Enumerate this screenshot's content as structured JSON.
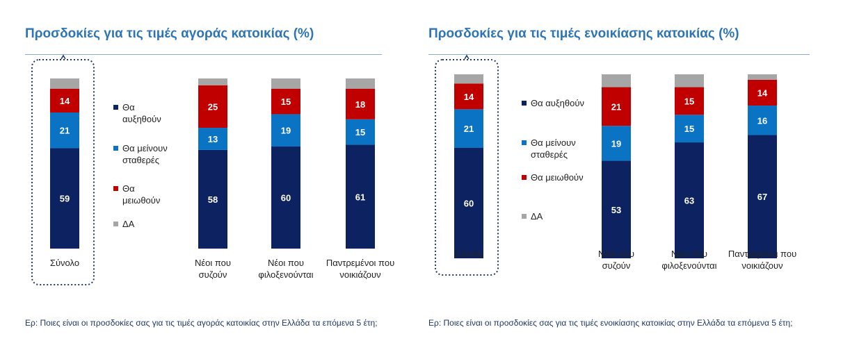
{
  "colors": {
    "increase": "#0D2260",
    "stable": "#0A73C4",
    "decrease": "#C00000",
    "dk": "#A6A6A6",
    "title": "#2E75B6",
    "text": "#1F3864"
  },
  "chart_data": [
    {
      "type": "bar",
      "stacked": true,
      "title": "Προσδοκίες για τις τιμές αγοράς κατοικίας (%)",
      "categories": [
        "Σύνολο",
        "Νέοι που συζούν",
        "Νέοι που φιλοξενούνται",
        "Παντρεμένοι που νοικιάζουν"
      ],
      "series": [
        {
          "name": "Θα αυξηθούν",
          "values": [
            59,
            58,
            60,
            61
          ]
        },
        {
          "name": "Θα μείνουν σταθερές",
          "values": [
            21,
            13,
            19,
            15
          ]
        },
        {
          "name": "Θα μειωθούν",
          "values": [
            14,
            25,
            15,
            18
          ]
        },
        {
          "name": "ΔΑ",
          "values": [
            6,
            4,
            6,
            6
          ]
        }
      ],
      "legend_position": "between first and second bar",
      "footnote": "Ερ: Ποιες είναι οι προσδοκίες σας για τις τιμές αγοράς κατοικίας στην Ελλάδα τα επόμενα 5 έτη;"
    },
    {
      "type": "bar",
      "stacked": true,
      "title": "Προσδοκίες για τις τιμές ενοικίασης κατοικίας (%)",
      "categories": [
        "Σύνολο",
        "Νέοι που συζούν",
        "Νέοι που φιλοξενούνται",
        "Παντρεμένοι που νοικιάζουν"
      ],
      "series": [
        {
          "name": "Θα αυξηθούν",
          "values": [
            60,
            53,
            63,
            67
          ]
        },
        {
          "name": "Θα μείνουν σταθερές",
          "values": [
            21,
            19,
            15,
            16
          ]
        },
        {
          "name": "Θα μειωθούν",
          "values": [
            14,
            21,
            15,
            14
          ]
        },
        {
          "name": "ΔΑ",
          "values": [
            5,
            7,
            7,
            3
          ]
        }
      ],
      "legend_position": "between first and second bar",
      "footnote": "Ερ: Ποιες είναι οι προσδοκίες σας για τις τιμές ενοικίασης κατοικίας στην Ελλάδα τα επόμενα 5 έτη;"
    }
  ]
}
